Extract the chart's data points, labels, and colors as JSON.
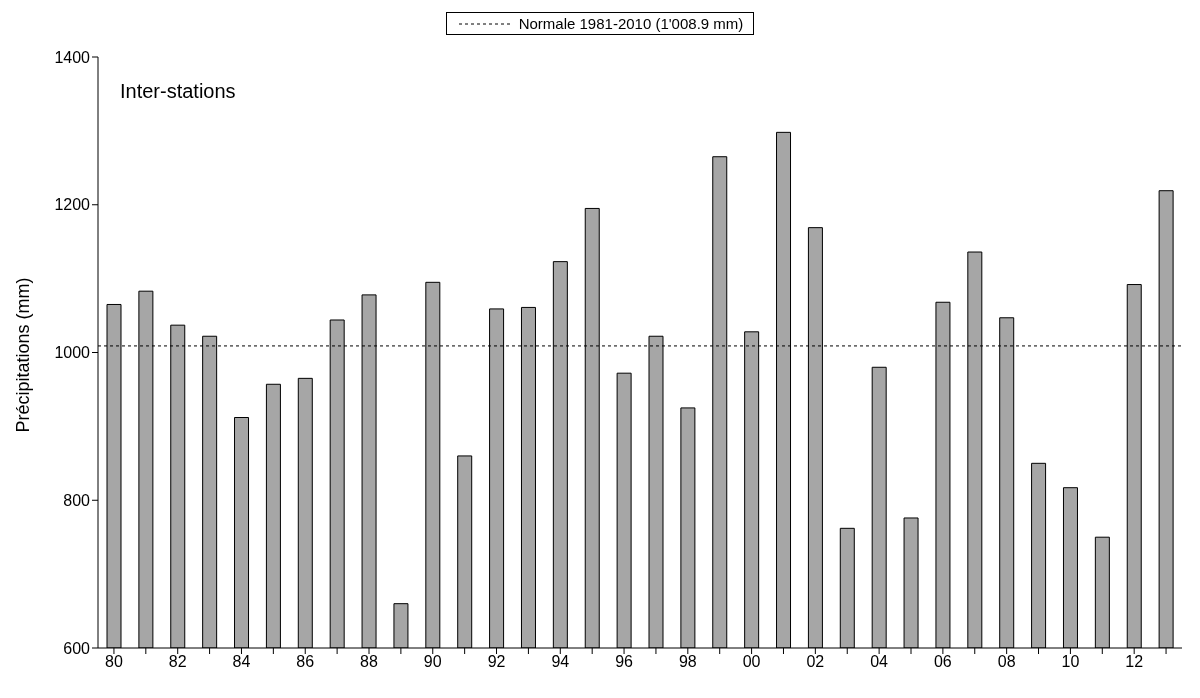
{
  "chart_data": {
    "type": "bar",
    "ylabel": "Précipitations (mm)",
    "annotations": [
      "Inter-stations"
    ],
    "categories": [
      "80",
      null,
      "82",
      null,
      "84",
      null,
      "86",
      null,
      "88",
      null,
      "90",
      null,
      "92",
      null,
      "94",
      null,
      "96",
      null,
      "98",
      null,
      "00",
      null,
      "02",
      null,
      "04",
      null,
      "06",
      null,
      "08",
      null,
      "10",
      null,
      "12",
      null
    ],
    "values": [
      1065,
      1083,
      1037,
      1022,
      912,
      957,
      965,
      1044,
      1078,
      660,
      1095,
      860,
      1059,
      1061,
      1123,
      1195,
      972,
      1022,
      925,
      1265,
      1028,
      1298,
      1169,
      762,
      980,
      776,
      1068,
      1136,
      1047,
      850,
      817,
      750,
      1092,
      1219
    ],
    "color": "#a6a6a6",
    "ylim": [
      600,
      1400
    ],
    "yticks": [
      600,
      800,
      1000,
      1200,
      1400
    ],
    "legend": "top",
    "ref_lines": [
      {
        "axis": "y",
        "value": 1008.9,
        "label": "Normale 1981-2010 (1'008.9 mm)",
        "line_style": "dotted",
        "color": "#000000"
      }
    ]
  }
}
